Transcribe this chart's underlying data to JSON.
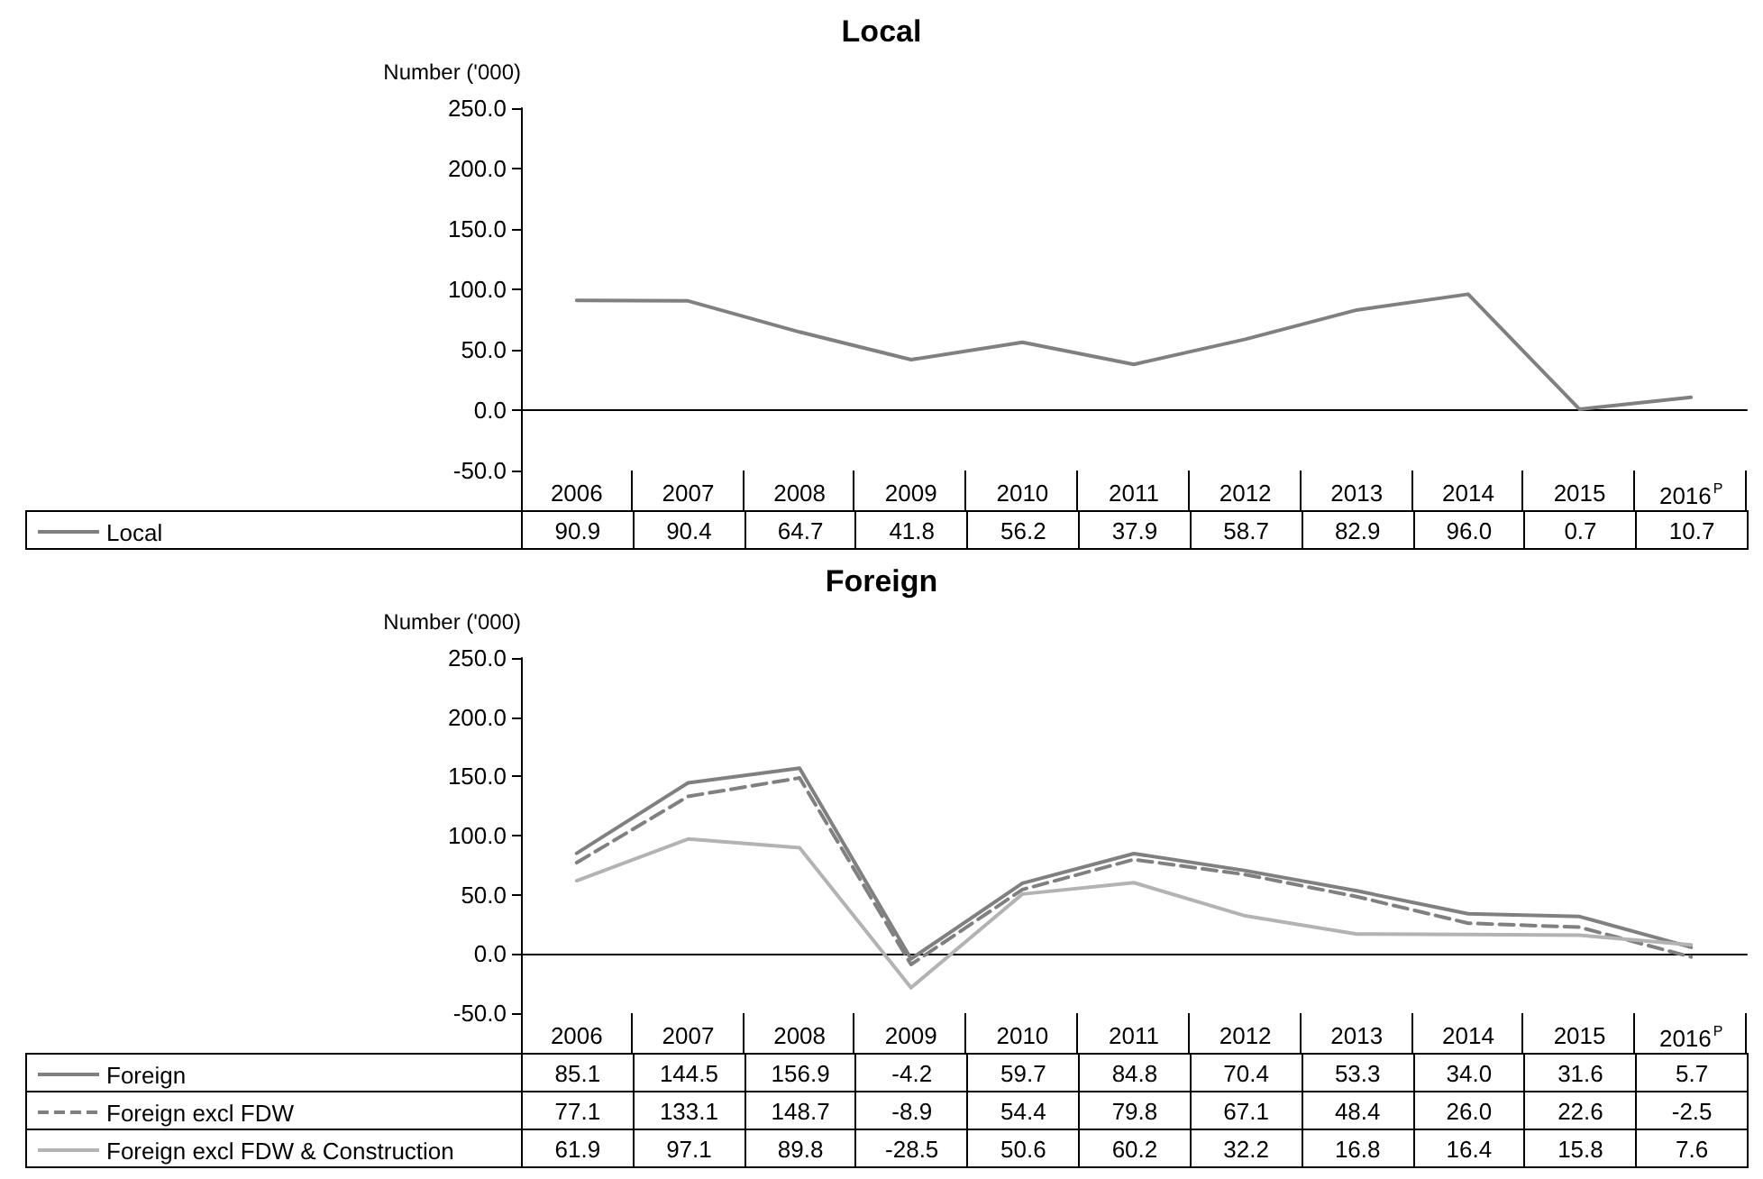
{
  "chart_data": [
    {
      "type": "line",
      "title": "Local",
      "ylabel": "Number ('000)",
      "categories": [
        "2006",
        "2007",
        "2008",
        "2009",
        "2010",
        "2011",
        "2012",
        "2013",
        "2014",
        "2015",
        "2016$^{P}$"
      ],
      "series": [
        {
          "name": "Local",
          "color": "#808080",
          "line_style": "solid",
          "values": [
            90.9,
            90.4,
            64.7,
            41.8,
            56.2,
            37.9,
            58.7,
            82.9,
            96.0,
            0.7,
            10.7
          ],
          "value_labels": [
            "90.9",
            "90.4",
            "64.7",
            "41.8",
            "56.2",
            "37.9",
            "58.7",
            "82.9",
            "96.0",
            "0.7",
            "10.7"
          ]
        }
      ],
      "ylim": [
        -50,
        250
      ],
      "yticks": [
        {
          "value": -50,
          "label": "-50.0"
        },
        {
          "value": 0,
          "label": "0.0"
        },
        {
          "value": 50,
          "label": "50.0"
        },
        {
          "value": 100,
          "label": "100.0"
        },
        {
          "value": 150,
          "label": "150.0"
        },
        {
          "value": 200,
          "label": "200.0"
        },
        {
          "value": 250,
          "label": "250.0"
        }
      ],
      "legend": "bottom",
      "marker": "none"
    },
    {
      "type": "line",
      "title": "Foreign",
      "ylabel": "Number ('000)",
      "categories": [
        "2006",
        "2007",
        "2008",
        "2009",
        "2010",
        "2011",
        "2012",
        "2013",
        "2014",
        "2015",
        "2016$^{P}$"
      ],
      "series": [
        {
          "name": "Foreign",
          "color": "#808080",
          "line_style": "solid",
          "values": [
            85.1,
            144.5,
            156.9,
            -4.2,
            59.7,
            84.8,
            70.4,
            53.3,
            34.0,
            31.6,
            5.7
          ],
          "value_labels": [
            "85.1",
            "144.5",
            "156.9",
            "-4.2",
            "59.7",
            "84.8",
            "70.4",
            "53.3",
            "34.0",
            "31.6",
            "5.7"
          ]
        },
        {
          "name": "Foreign excl FDW",
          "color": "#808080",
          "line_style": "dashed",
          "values": [
            77.1,
            133.1,
            148.7,
            -8.9,
            54.4,
            79.8,
            67.1,
            48.4,
            26.0,
            22.6,
            -2.5
          ],
          "value_labels": [
            "77.1",
            "133.1",
            "148.7",
            "-8.9",
            "54.4",
            "79.8",
            "67.1",
            "48.4",
            "26.0",
            "22.6",
            "-2.5"
          ]
        },
        {
          "name": "Foreign excl FDW & Construction",
          "color": "#b3b3b3",
          "line_style": "solid",
          "values": [
            61.9,
            97.1,
            89.8,
            -28.5,
            50.6,
            60.2,
            32.2,
            16.8,
            16.4,
            15.8,
            7.6
          ],
          "value_labels": [
            "61.9",
            "97.1",
            "89.8",
            "-28.5",
            "50.6",
            "60.2",
            "32.2",
            "16.8",
            "16.4",
            "15.8",
            "7.6"
          ]
        }
      ],
      "ylim": [
        -50,
        250
      ],
      "yticks": [
        {
          "value": -50,
          "label": "-50.0"
        },
        {
          "value": 0,
          "label": "0.0"
        },
        {
          "value": 50,
          "label": "50.0"
        },
        {
          "value": 100,
          "label": "100.0"
        },
        {
          "value": 150,
          "label": "150.0"
        },
        {
          "value": 200,
          "label": "200.0"
        },
        {
          "value": 250,
          "label": "250.0"
        }
      ],
      "legend": "bottom",
      "marker": "none"
    }
  ]
}
